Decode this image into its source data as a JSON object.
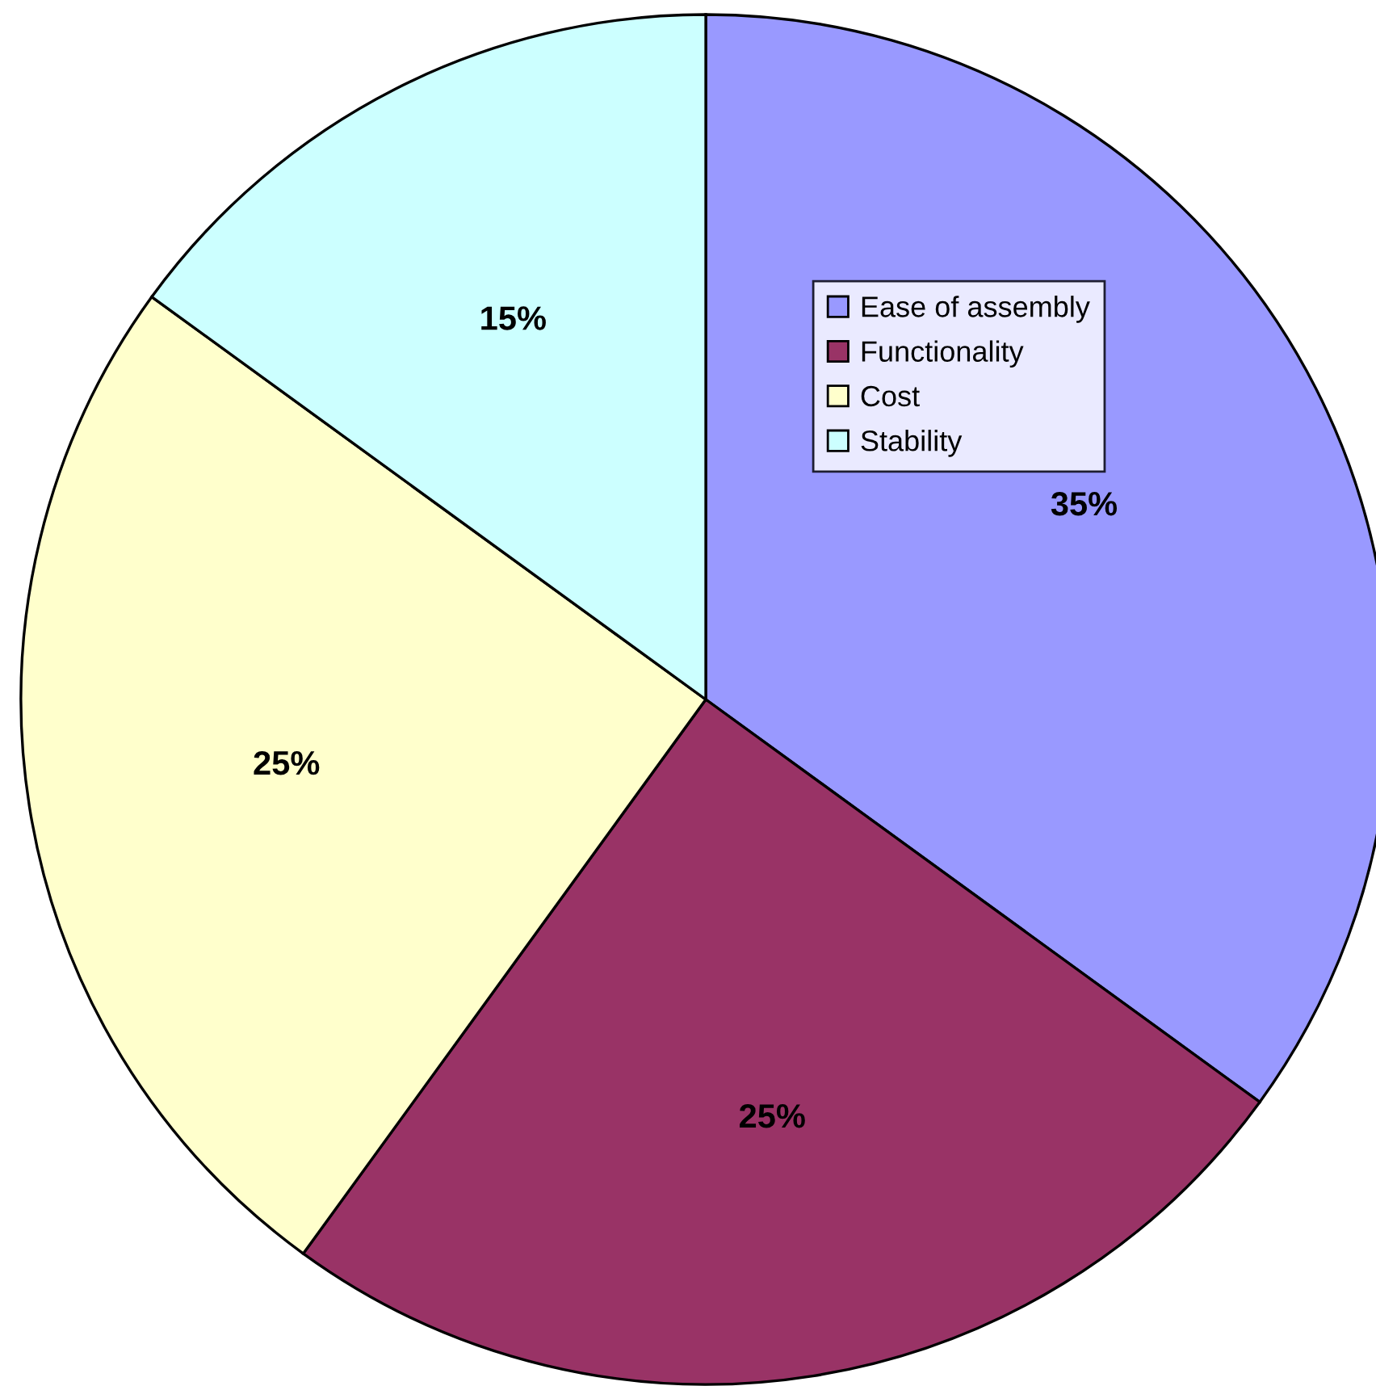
{
  "chart_data": {
    "type": "pie",
    "categories": [
      "Ease of assembly",
      "Functionality",
      "Cost",
      "Stability"
    ],
    "values": [
      35,
      25,
      25,
      15
    ],
    "colors": [
      "#9999ff",
      "#993366",
      "#ffffcc",
      "#ccffff"
    ],
    "value_labels": [
      "35%",
      "25%",
      "25%",
      "15%"
    ],
    "legend": "top right"
  }
}
